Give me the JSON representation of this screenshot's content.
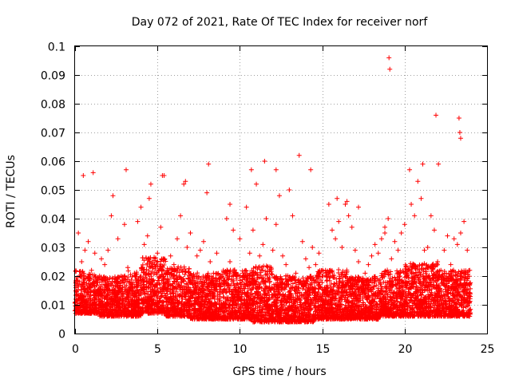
{
  "chart_data": {
    "type": "scatter",
    "title": "Day 072 of 2021, Rate Of TEC Index for receiver norf",
    "xlabel": "GPS time / hours",
    "ylabel": "ROTI / TECUs",
    "xlim": [
      0,
      25
    ],
    "ylim": [
      0,
      0.1
    ],
    "x_ticks": [
      "0",
      "5",
      "10",
      "15",
      "20",
      "25"
    ],
    "y_ticks": [
      "0",
      "0.01",
      "0.02",
      "0.03",
      "0.04",
      "0.05",
      "0.06",
      "0.07",
      "0.08",
      "0.09",
      "0.1"
    ],
    "grid": true,
    "marker": "plus",
    "series_color": "#ff0000",
    "series": [
      {
        "x": [
          0.05,
          0.2,
          0.4,
          0.6,
          0.8,
          1.0,
          1.2,
          1.4,
          1.6,
          1.8,
          2.0,
          2.2,
          2.4,
          2.6,
          2.8,
          3.0,
          3.2,
          3.4,
          3.6,
          3.8,
          4.0,
          4.2,
          4.4,
          4.6,
          4.8,
          5.0,
          5.2,
          5.4,
          5.6,
          5.8,
          6.0,
          6.2,
          6.4,
          6.6,
          6.8,
          7.0,
          7.2,
          7.4,
          7.6,
          7.8,
          8.0,
          8.2,
          8.4,
          8.6,
          8.8,
          9.0,
          9.2,
          9.4,
          9.6,
          9.8,
          10.0,
          10.2,
          10.4,
          10.6,
          10.8,
          11.0,
          11.2,
          11.4,
          11.6,
          11.8,
          12.0,
          12.2,
          12.4,
          12.6,
          12.8,
          13.0,
          13.2,
          13.4,
          13.6,
          13.8,
          14.0,
          14.2,
          14.4,
          14.6,
          14.8,
          15.0,
          15.2,
          15.4,
          15.6,
          15.8,
          16.0,
          16.2,
          16.4,
          16.6,
          16.8,
          17.0,
          17.2,
          17.4,
          17.6,
          17.8,
          18.0,
          18.2,
          18.4,
          18.6,
          18.8,
          19.0,
          19.2,
          19.4,
          19.6,
          19.8,
          20.0,
          20.2,
          20.4,
          20.6,
          20.8,
          21.0,
          21.2,
          21.4,
          21.6,
          21.8,
          22.0,
          22.2,
          22.4,
          22.6,
          22.8,
          23.0,
          23.2,
          23.4,
          23.6,
          23.8,
          23.95,
          0.5,
          1.1,
          2.3,
          3.1,
          4.5,
          5.3,
          6.7,
          8.1,
          9.4,
          10.7,
          11.5,
          12.2,
          13.6,
          14.3,
          15.9,
          16.5,
          17.2,
          18.8,
          19.05,
          19.1,
          20.3,
          21.1,
          21.9,
          22.05,
          23.3,
          23.35,
          23.4
        ],
        "y": [
          0.018,
          0.035,
          0.025,
          0.029,
          0.032,
          0.022,
          0.028,
          0.015,
          0.026,
          0.024,
          0.029,
          0.041,
          0.018,
          0.033,
          0.02,
          0.038,
          0.023,
          0.017,
          0.021,
          0.039,
          0.044,
          0.031,
          0.034,
          0.052,
          0.026,
          0.028,
          0.037,
          0.055,
          0.019,
          0.027,
          0.024,
          0.033,
          0.041,
          0.052,
          0.03,
          0.035,
          0.016,
          0.027,
          0.029,
          0.032,
          0.049,
          0.025,
          0.021,
          0.028,
          0.017,
          0.022,
          0.04,
          0.025,
          0.036,
          0.019,
          0.033,
          0.021,
          0.044,
          0.028,
          0.036,
          0.052,
          0.027,
          0.031,
          0.04,
          0.022,
          0.029,
          0.038,
          0.048,
          0.027,
          0.024,
          0.05,
          0.041,
          0.021,
          0.018,
          0.032,
          0.026,
          0.023,
          0.03,
          0.024,
          0.028,
          0.02,
          0.022,
          0.045,
          0.036,
          0.033,
          0.039,
          0.03,
          0.045,
          0.041,
          0.037,
          0.029,
          0.025,
          0.015,
          0.021,
          0.024,
          0.027,
          0.031,
          0.028,
          0.033,
          0.035,
          0.04,
          0.026,
          0.032,
          0.029,
          0.035,
          0.038,
          0.022,
          0.045,
          0.041,
          0.053,
          0.047,
          0.029,
          0.03,
          0.041,
          0.036,
          0.025,
          0.022,
          0.029,
          0.034,
          0.024,
          0.033,
          0.031,
          0.035,
          0.039,
          0.029,
          0.022,
          0.055,
          0.056,
          0.048,
          0.057,
          0.047,
          0.055,
          0.053,
          0.059,
          0.045,
          0.057,
          0.06,
          0.057,
          0.062,
          0.057,
          0.047,
          0.046,
          0.044,
          0.037,
          0.096,
          0.092,
          0.057,
          0.059,
          0.076,
          0.059,
          0.075,
          0.07,
          0.068
        ]
      }
    ],
    "dense_band": [
      [
        0.0,
        0.6,
        0.007,
        0.02
      ],
      [
        0.6,
        1.5,
        0.007,
        0.019
      ],
      [
        1.5,
        3.0,
        0.006,
        0.018
      ],
      [
        3.0,
        4.0,
        0.006,
        0.02
      ],
      [
        4.0,
        5.5,
        0.007,
        0.024
      ],
      [
        5.5,
        7.0,
        0.006,
        0.021
      ],
      [
        7.0,
        9.0,
        0.005,
        0.019
      ],
      [
        9.0,
        10.8,
        0.005,
        0.02
      ],
      [
        10.8,
        12.0,
        0.004,
        0.021
      ],
      [
        12.0,
        14.5,
        0.004,
        0.018
      ],
      [
        14.5,
        16.5,
        0.005,
        0.02
      ],
      [
        16.5,
        18.5,
        0.005,
        0.018
      ],
      [
        18.5,
        20.0,
        0.006,
        0.02
      ],
      [
        20.0,
        22.0,
        0.006,
        0.022
      ],
      [
        22.0,
        24.0,
        0.006,
        0.02
      ]
    ]
  }
}
